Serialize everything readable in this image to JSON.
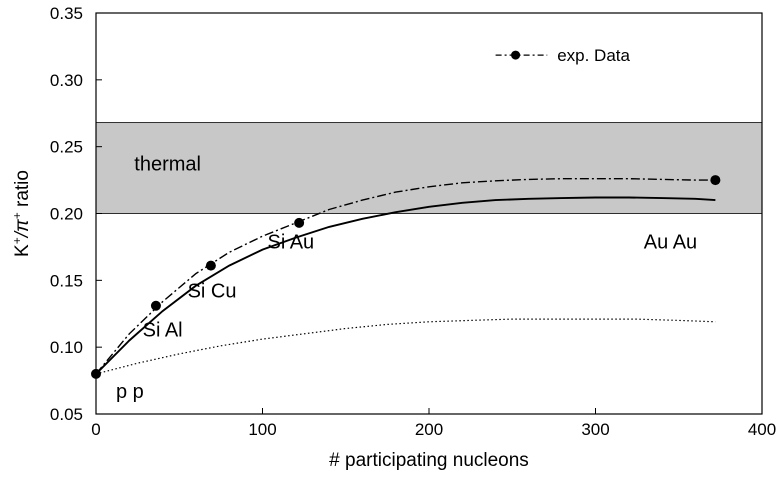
{
  "chart_data": {
    "type": "line",
    "xlabel": "# participating nucleons",
    "ylabel": {
      "main": "K",
      "sup1": "+",
      "mid": "/π",
      "sup2": "+",
      "tail": " ratio"
    },
    "xlim": [
      0,
      400
    ],
    "ylim": [
      0.05,
      0.35
    ],
    "xticks": [
      "0",
      "100",
      "200",
      "300",
      "400"
    ],
    "yticks": [
      "0.05",
      "0.10",
      "0.15",
      "0.20",
      "0.25",
      "0.30",
      "0.35"
    ],
    "band": {
      "label": "thermal",
      "y_range": [
        0.2,
        0.268
      ],
      "color": "#c8c8c8"
    },
    "legend": {
      "entries": [
        {
          "label": "exp. Data",
          "style": "dash-dot with markers"
        }
      ],
      "position": "top-right"
    },
    "series": [
      {
        "name": "exp. Data",
        "style": "dash-dot",
        "markers": true,
        "x": [
          0,
          36,
          69,
          122,
          372
        ],
        "y": [
          0.08,
          0.131,
          0.161,
          0.193,
          0.225
        ],
        "curve_x": [
          0,
          20,
          40,
          60,
          80,
          100,
          120,
          140,
          160,
          180,
          200,
          220,
          240,
          260,
          280,
          300,
          320,
          340,
          360,
          372
        ],
        "curve_y": [
          0.08,
          0.11,
          0.134,
          0.155,
          0.171,
          0.183,
          0.193,
          0.203,
          0.21,
          0.216,
          0.22,
          0.223,
          0.2245,
          0.2255,
          0.226,
          0.226,
          0.226,
          0.2255,
          0.225,
          0.225
        ]
      },
      {
        "style": "solid",
        "x": [
          0,
          20,
          40,
          60,
          80,
          100,
          120,
          140,
          160,
          180,
          200,
          220,
          240,
          260,
          280,
          300,
          320,
          340,
          360,
          372
        ],
        "y": [
          0.08,
          0.105,
          0.127,
          0.146,
          0.161,
          0.173,
          0.182,
          0.19,
          0.196,
          0.201,
          0.205,
          0.208,
          0.21,
          0.211,
          0.2115,
          0.212,
          0.212,
          0.2115,
          0.211,
          0.21
        ]
      },
      {
        "style": "dotted",
        "x": [
          0,
          25,
          50,
          75,
          100,
          125,
          150,
          175,
          200,
          225,
          250,
          275,
          300,
          325,
          350,
          372
        ],
        "y": [
          0.08,
          0.088,
          0.095,
          0.101,
          0.106,
          0.11,
          0.114,
          0.117,
          0.119,
          0.12,
          0.121,
          0.121,
          0.121,
          0.121,
          0.12,
          0.119
        ]
      }
    ],
    "annotations": [
      {
        "text": "p p",
        "x": 12,
        "y": 0.062
      },
      {
        "text": "Si Al",
        "x": 28,
        "y": 0.108
      },
      {
        "text": "Si Cu",
        "x": 55,
        "y": 0.137
      },
      {
        "text": "Si Au",
        "x": 103,
        "y": 0.174
      },
      {
        "text": "Au Au",
        "x": 329,
        "y": 0.174
      }
    ]
  }
}
